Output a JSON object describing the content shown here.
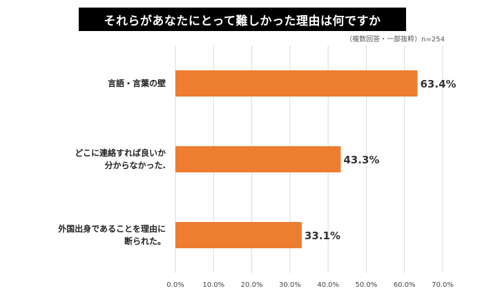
{
  "title": "それらがあなたにとって難しかった理由は何ですか",
  "note": "（複数回答・一部抜粋）n=254",
  "chart_data": {
    "type": "bar",
    "orientation": "horizontal",
    "title": "それらがあなたにとって難しかった理由は何ですか",
    "categories": [
      [
        "言語・言葉の壁"
      ],
      [
        "どこに連絡すれば良いか",
        "分からなかった."
      ],
      [
        "外国出身であることを理由に",
        "断られた。"
      ]
    ],
    "values": [
      63.4,
      43.3,
      33.1
    ],
    "value_labels": [
      "63.4%",
      "43.3%",
      "33.1%"
    ],
    "xlim": [
      0,
      70
    ],
    "xticks": [
      "0.0%",
      "10.0%",
      "20.0%",
      "30.0%",
      "40.0%",
      "50.0%",
      "60.0%",
      "70.0%"
    ],
    "grid": true,
    "bar_color": "#ED7D31"
  }
}
